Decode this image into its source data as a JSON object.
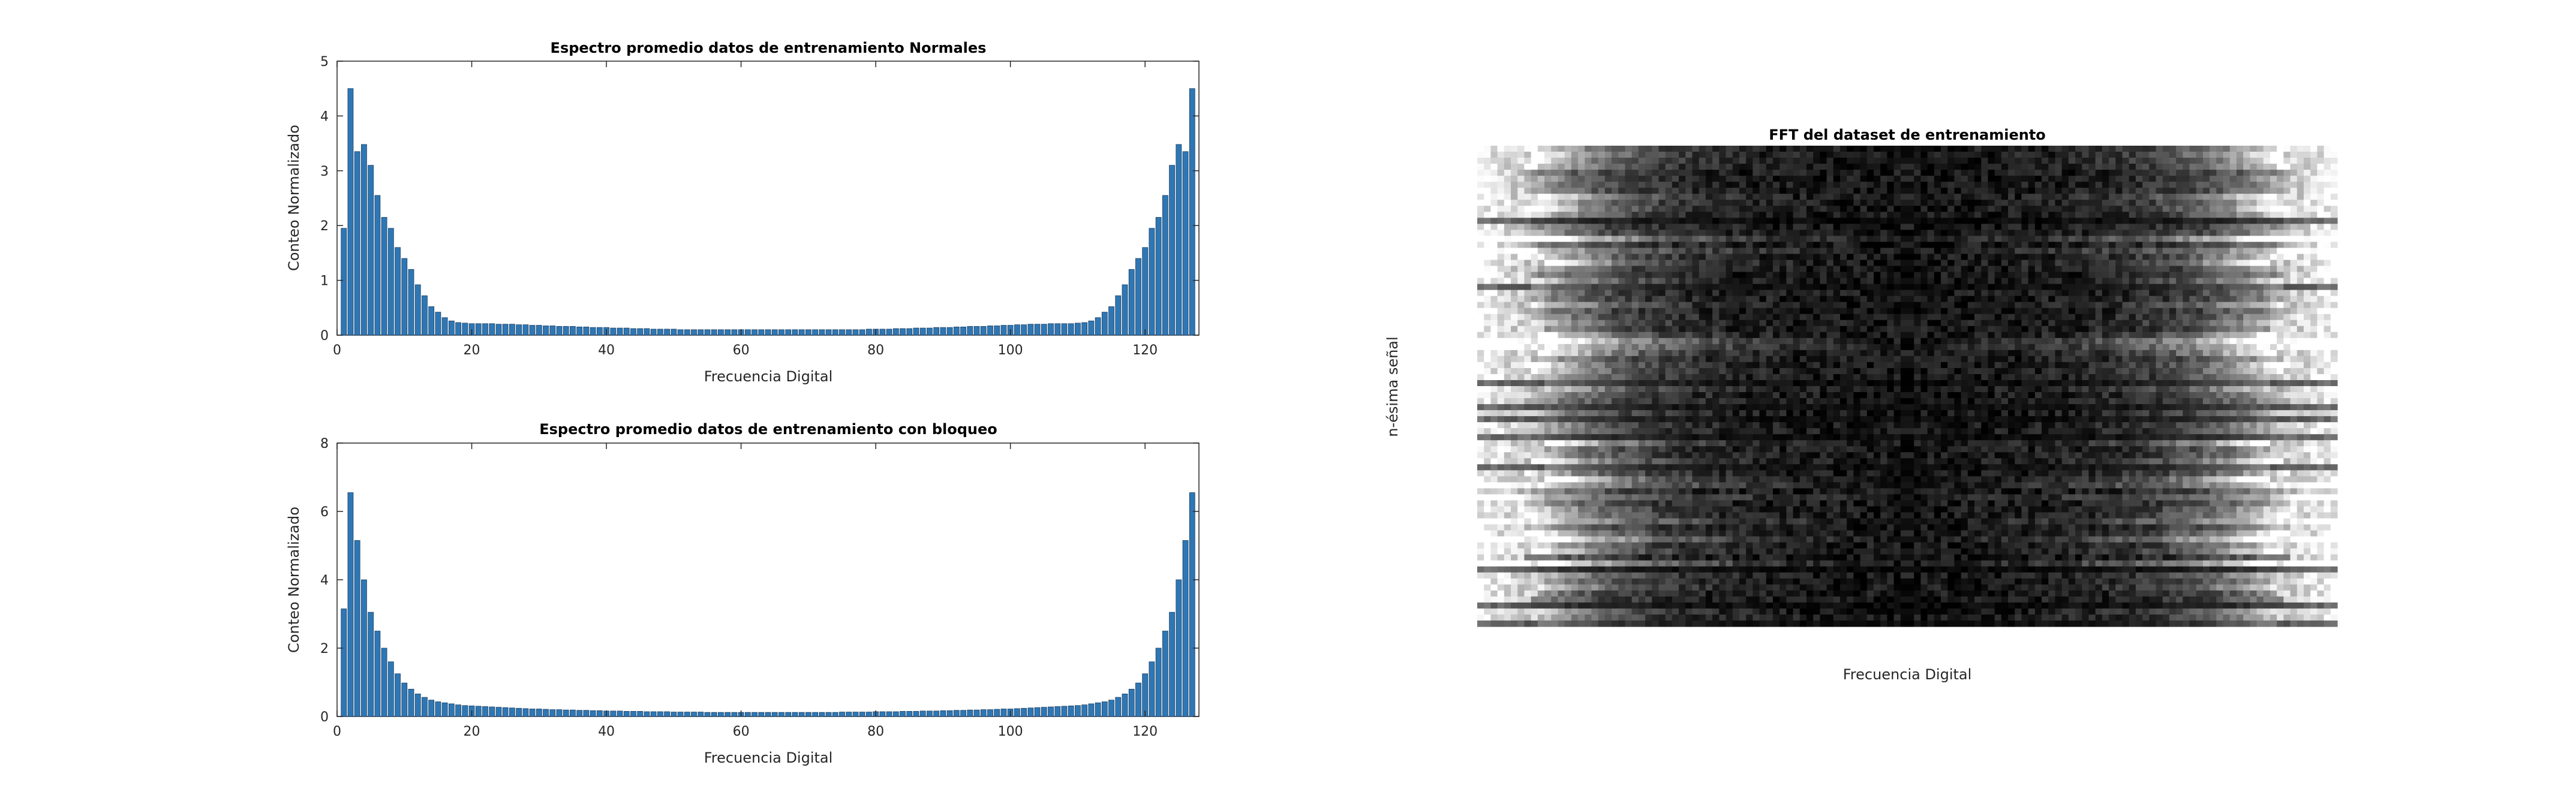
{
  "chart_data": [
    {
      "type": "bar",
      "title": "Espectro promedio datos de entrenamiento Normales",
      "xlabel": "Frecuencia Digital",
      "ylabel": "Conteo Normalizado",
      "xlim": [
        0,
        128
      ],
      "ylim": [
        0,
        5
      ],
      "xticks": [
        "0",
        "20",
        "40",
        "60",
        "80",
        "100",
        "120"
      ],
      "yticks": [
        "0",
        "1",
        "2",
        "3",
        "4",
        "5"
      ],
      "bar_color": "#2f77b4",
      "x": [
        1,
        2,
        3,
        4,
        5,
        6,
        7,
        8,
        9,
        10,
        11,
        12,
        13,
        14,
        15,
        16,
        17,
        18,
        19,
        20,
        21,
        22,
        23,
        24,
        25,
        26,
        27,
        28,
        29,
        30,
        31,
        32,
        33,
        34,
        35,
        36,
        37,
        38,
        39,
        40,
        41,
        42,
        43,
        44,
        45,
        46,
        47,
        48,
        49,
        50,
        51,
        52,
        53,
        54,
        55,
        56,
        57,
        58,
        59,
        60,
        61,
        62,
        63,
        64,
        65,
        66,
        67,
        68,
        69,
        70,
        71,
        72,
        73,
        74,
        75,
        76,
        77,
        78,
        79,
        80,
        81,
        82,
        83,
        84,
        85,
        86,
        87,
        88,
        89,
        90,
        91,
        92,
        93,
        94,
        95,
        96,
        97,
        98,
        99,
        100,
        101,
        102,
        103,
        104,
        105,
        106,
        107,
        108,
        109,
        110,
        111,
        112,
        113,
        114,
        115,
        116,
        117,
        118,
        119,
        120,
        121,
        122,
        123,
        124,
        125,
        126,
        127
      ],
      "values": [
        1.95,
        4.5,
        3.35,
        3.48,
        3.1,
        2.55,
        2.15,
        1.95,
        1.6,
        1.4,
        1.2,
        0.92,
        0.72,
        0.52,
        0.42,
        0.32,
        0.26,
        0.23,
        0.22,
        0.21,
        0.21,
        0.21,
        0.21,
        0.2,
        0.2,
        0.2,
        0.19,
        0.19,
        0.18,
        0.18,
        0.17,
        0.17,
        0.16,
        0.16,
        0.16,
        0.15,
        0.15,
        0.14,
        0.14,
        0.14,
        0.13,
        0.13,
        0.13,
        0.12,
        0.12,
        0.12,
        0.11,
        0.11,
        0.11,
        0.11,
        0.1,
        0.1,
        0.1,
        0.1,
        0.1,
        0.1,
        0.1,
        0.1,
        0.1,
        0.1,
        0.1,
        0.1,
        0.1,
        0.1,
        0.1,
        0.1,
        0.1,
        0.1,
        0.1,
        0.1,
        0.1,
        0.1,
        0.1,
        0.1,
        0.1,
        0.1,
        0.1,
        0.1,
        0.11,
        0.11,
        0.11,
        0.11,
        0.12,
        0.12,
        0.12,
        0.13,
        0.13,
        0.13,
        0.14,
        0.14,
        0.14,
        0.15,
        0.15,
        0.16,
        0.16,
        0.16,
        0.17,
        0.17,
        0.18,
        0.18,
        0.19,
        0.19,
        0.2,
        0.2,
        0.2,
        0.21,
        0.21,
        0.21,
        0.21,
        0.22,
        0.23,
        0.26,
        0.32,
        0.42,
        0.52,
        0.72,
        0.92,
        1.2,
        1.4,
        1.6,
        1.95,
        2.15,
        2.55,
        3.1,
        3.48,
        3.35,
        4.5
      ]
    },
    {
      "type": "bar",
      "title": "Espectro promedio datos de entrenamiento con bloqueo",
      "xlabel": "Frecuencia Digital",
      "ylabel": "Conteo Normalizado",
      "xlim": [
        0,
        128
      ],
      "ylim": [
        0,
        8
      ],
      "xticks": [
        "0",
        "20",
        "40",
        "60",
        "80",
        "100",
        "120"
      ],
      "yticks": [
        "0",
        "2",
        "4",
        "6",
        "8"
      ],
      "bar_color": "#2f77b4",
      "x": [
        1,
        2,
        3,
        4,
        5,
        6,
        7,
        8,
        9,
        10,
        11,
        12,
        13,
        14,
        15,
        16,
        17,
        18,
        19,
        20,
        21,
        22,
        23,
        24,
        25,
        26,
        27,
        28,
        29,
        30,
        31,
        32,
        33,
        34,
        35,
        36,
        37,
        38,
        39,
        40,
        41,
        42,
        43,
        44,
        45,
        46,
        47,
        48,
        49,
        50,
        51,
        52,
        53,
        54,
        55,
        56,
        57,
        58,
        59,
        60,
        61,
        62,
        63,
        64,
        65,
        66,
        67,
        68,
        69,
        70,
        71,
        72,
        73,
        74,
        75,
        76,
        77,
        78,
        79,
        80,
        81,
        82,
        83,
        84,
        85,
        86,
        87,
        88,
        89,
        90,
        91,
        92,
        93,
        94,
        95,
        96,
        97,
        98,
        99,
        100,
        101,
        102,
        103,
        104,
        105,
        106,
        107,
        108,
        109,
        110,
        111,
        112,
        113,
        114,
        115,
        116,
        117,
        118,
        119,
        120,
        121,
        122,
        123,
        124,
        125,
        126,
        127
      ],
      "values": [
        3.15,
        6.55,
        5.15,
        4.0,
        3.05,
        2.5,
        2.0,
        1.6,
        1.25,
        0.98,
        0.8,
        0.66,
        0.56,
        0.48,
        0.43,
        0.4,
        0.37,
        0.34,
        0.32,
        0.31,
        0.3,
        0.29,
        0.28,
        0.27,
        0.26,
        0.25,
        0.24,
        0.23,
        0.22,
        0.22,
        0.21,
        0.2,
        0.2,
        0.19,
        0.19,
        0.18,
        0.18,
        0.17,
        0.17,
        0.16,
        0.16,
        0.16,
        0.15,
        0.15,
        0.15,
        0.14,
        0.14,
        0.14,
        0.14,
        0.13,
        0.13,
        0.13,
        0.13,
        0.13,
        0.12,
        0.12,
        0.12,
        0.12,
        0.12,
        0.12,
        0.12,
        0.12,
        0.12,
        0.12,
        0.12,
        0.12,
        0.12,
        0.12,
        0.12,
        0.12,
        0.12,
        0.12,
        0.12,
        0.12,
        0.13,
        0.13,
        0.13,
        0.13,
        0.13,
        0.14,
        0.14,
        0.14,
        0.14,
        0.15,
        0.15,
        0.15,
        0.16,
        0.16,
        0.16,
        0.17,
        0.17,
        0.18,
        0.18,
        0.19,
        0.19,
        0.2,
        0.2,
        0.21,
        0.22,
        0.22,
        0.23,
        0.24,
        0.25,
        0.26,
        0.27,
        0.28,
        0.29,
        0.3,
        0.31,
        0.32,
        0.34,
        0.37,
        0.4,
        0.43,
        0.48,
        0.56,
        0.66,
        0.8,
        0.98,
        1.25,
        1.6,
        2.0,
        2.5,
        3.05,
        4.0,
        5.15,
        6.55
      ]
    },
    {
      "type": "heatmap",
      "title": "FFT del dataset de entrenamiento",
      "xlabel": "Frecuencia Digital",
      "ylabel": "n-ésima señal",
      "colormap": "gray",
      "axes_visible": false,
      "rows": 80,
      "cols": 128,
      "description_values": "Bright (white) at both frequency edges, dark (black) in the centre band; symmetric about the middle column; row-to-row variation"
    }
  ]
}
